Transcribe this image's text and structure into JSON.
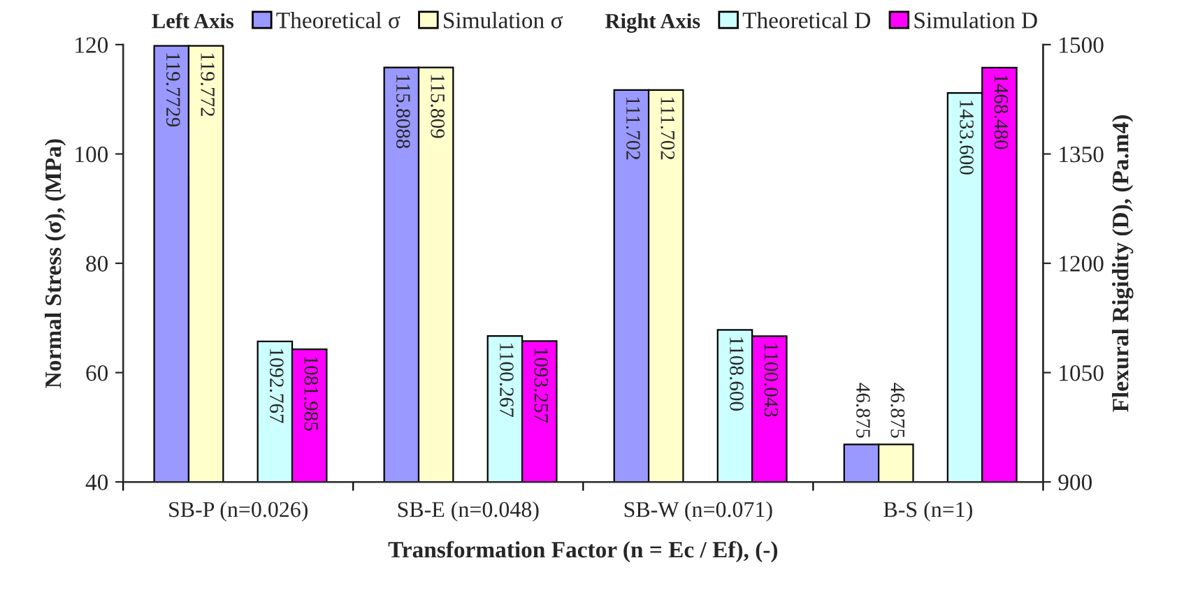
{
  "chart_data": {
    "type": "bar",
    "xlabel": "Transformation Factor (n = Ec / Ef), (-)",
    "ylabel": "Normal Stress (σ), (MPa)",
    "y2label": "Flexural Rigidity (D), (Pa.m4)",
    "categories": [
      "SB-P (n=0.026)",
      "SB-E (n=0.048)",
      "SB-W (n=0.071)",
      "B-S (n=1)"
    ],
    "series": [
      {
        "name": "Theoretical σ",
        "color": "#9999ff",
        "values": [
          119.7729,
          115.8088,
          111.702,
          46.875
        ],
        "value_labels": [
          "119.7729",
          "115.8088",
          "111.702",
          "46.875"
        ]
      },
      {
        "name": "Simulation σ",
        "color": "#ffffcc",
        "values": [
          119.772,
          115.809,
          111.702,
          46.875
        ],
        "value_labels": [
          "119.772",
          "115.809",
          "111.702",
          "46.875"
        ]
      },
      {
        "name": "Theoretical D",
        "color": "#ccffff",
        "axis": "y2",
        "values": [
          1092.767,
          1100.267,
          1108.6,
          1433.6
        ],
        "value_labels": [
          "1092.767",
          "1100.267",
          "1108.600",
          "1433.600"
        ]
      },
      {
        "name": "Simulation D",
        "color": "#ff00ff",
        "axis": "y2",
        "values": [
          1081.985,
          1093.257,
          1100.043,
          1468.48
        ],
        "value_labels": [
          "1081.985",
          "1093.257",
          "1100.043",
          "1468.480"
        ]
      }
    ],
    "annotations": [
      "Left Axis",
      "Right Axis"
    ],
    "ylim": [
      40,
      120
    ],
    "yticks": [
      40,
      60,
      80,
      100,
      120
    ],
    "y2lim": [
      900,
      1500
    ],
    "y2ticks": [
      900,
      1050,
      1200,
      1350,
      1500
    ],
    "grid": false,
    "legend": "top"
  }
}
